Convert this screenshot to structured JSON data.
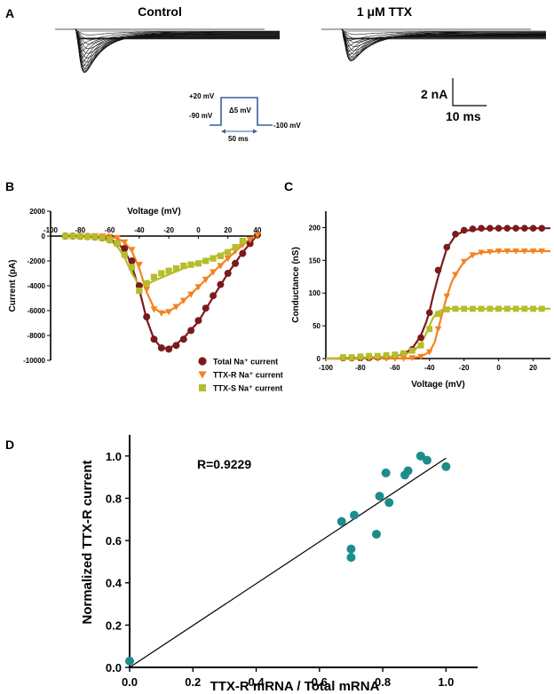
{
  "panel_labels": {
    "a": "A",
    "b": "B",
    "c": "C",
    "d": "D"
  },
  "panel_a": {
    "left_title": "Control",
    "right_title": "1 μM TTX",
    "protocol": {
      "top": "+20 mV",
      "step": "Δ5 mV",
      "hold": "-90 mV",
      "end": "-100 mV",
      "duration": "50 ms"
    },
    "scale": {
      "current": "2 nA",
      "time": "10 ms"
    }
  },
  "chart_data": [
    {
      "id": "B",
      "type": "line",
      "title": "",
      "xlabel": "Voltage (mV)",
      "ylabel": "Current (pA)",
      "xlim": [
        -100,
        40
      ],
      "ylim": [
        -10000,
        2000
      ],
      "xticks": [
        -100,
        -80,
        -60,
        -40,
        -20,
        0,
        20,
        40
      ],
      "xtick_labels": [
        "-100",
        "-80",
        "-60",
        "-40",
        "-20",
        "0",
        "20",
        "40"
      ],
      "yticks": [
        2000,
        0,
        -2000,
        -4000,
        -6000,
        -8000,
        -10000
      ],
      "ytick_labels": [
        "2000",
        "0",
        "-2000",
        "-4000",
        "-6000",
        "-8000",
        "-10000"
      ],
      "legend": [
        "Total Na⁺ current",
        "TTX-R Na⁺ current",
        "TTX-S Na⁺ current"
      ],
      "legend_position": "bottom-right",
      "series": [
        {
          "name": "Total Na⁺ current",
          "color": "#7b1a1c",
          "marker": "circle",
          "x": [
            -90,
            -85,
            -80,
            -75,
            -70,
            -65,
            -60,
            -55,
            -50,
            -45,
            -40,
            -35,
            -30,
            -25,
            -20,
            -15,
            -10,
            -5,
            0,
            5,
            10,
            15,
            20,
            25,
            30,
            35,
            40
          ],
          "y": [
            0,
            0,
            -20,
            -40,
            -80,
            -150,
            -300,
            -600,
            -1000,
            -2000,
            -4000,
            -6500,
            -8300,
            -9000,
            -9100,
            -8800,
            -8300,
            -7600,
            -6800,
            -5800,
            -4800,
            -3900,
            -3000,
            -2200,
            -1400,
            -600,
            100
          ]
        },
        {
          "name": "TTX-R Na⁺ current",
          "color": "#f58220",
          "marker": "triangle",
          "x": [
            -80,
            -75,
            -70,
            -65,
            -60,
            -55,
            -50,
            -45,
            -40,
            -35,
            -30,
            -25,
            -20,
            -15,
            -10,
            -5,
            0,
            5,
            10,
            15,
            20,
            25,
            30,
            35,
            40
          ],
          "y": [
            0,
            0,
            0,
            -20,
            -50,
            -150,
            -500,
            -1100,
            -2300,
            -4300,
            -5900,
            -6200,
            -6100,
            -5700,
            -5200,
            -4700,
            -4100,
            -3500,
            -2900,
            -2400,
            -1800,
            -1200,
            -700,
            -300,
            100
          ]
        },
        {
          "name": "TTX-S Na⁺ current",
          "color": "#b5bd2a",
          "marker": "square",
          "x": [
            -90,
            -85,
            -80,
            -75,
            -70,
            -65,
            -60,
            -55,
            -50,
            -45,
            -40,
            -35,
            -30,
            -25,
            -20,
            -15,
            -10,
            -5,
            0,
            5,
            10,
            15,
            20,
            25,
            30
          ],
          "y": [
            0,
            0,
            -20,
            -40,
            -80,
            -150,
            -300,
            -600,
            -1500,
            -2500,
            -4400,
            -3800,
            -3300,
            -3000,
            -2800,
            -2600,
            -2400,
            -2300,
            -2200,
            -2000,
            -1800,
            -1600,
            -1300,
            -900,
            -400
          ]
        }
      ],
      "fit_curves": [
        {
          "name": "Total Na⁺ fit",
          "color": "#7b1a1c",
          "x": [
            -90,
            -80,
            -70,
            -60,
            -55,
            -50,
            -45,
            -40,
            -35,
            -30,
            -25,
            -20,
            -15,
            -10,
            0,
            10,
            20,
            30,
            40
          ],
          "y": [
            0,
            -5,
            -40,
            -250,
            -550,
            -1100,
            -2400,
            -4300,
            -6700,
            -8300,
            -9000,
            -9050,
            -8700,
            -8200,
            -6900,
            -4900,
            -3000,
            -1300,
            100
          ]
        },
        {
          "name": "TTX-R Na⁺ fit",
          "color": "#f58220",
          "x": [
            -80,
            -70,
            -60,
            -55,
            -50,
            -45,
            -40,
            -35,
            -30,
            -25,
            -20,
            -15,
            -10,
            0,
            10,
            20,
            30,
            40
          ],
          "y": [
            0,
            -10,
            -60,
            -180,
            -500,
            -1200,
            -2600,
            -4500,
            -5800,
            -6200,
            -6050,
            -5700,
            -5200,
            -4100,
            -2900,
            -1800,
            -700,
            100
          ]
        },
        {
          "name": "TTX-S Na⁺ fit",
          "color": "#b5bd2a",
          "x": [
            -90,
            -80,
            -70,
            -60,
            -55,
            -50,
            -45,
            -40,
            -35,
            -30,
            -20,
            -10,
            0,
            10,
            20,
            30,
            40
          ],
          "y": [
            0,
            -10,
            -80,
            -350,
            -800,
            -1700,
            -3000,
            -3950,
            -3900,
            -3600,
            -3100,
            -2600,
            -2150,
            -1700,
            -1200,
            -600,
            100
          ]
        }
      ]
    },
    {
      "id": "C",
      "type": "line",
      "title": "",
      "xlabel": "Voltage (mV)",
      "ylabel": "Conductance (nS)",
      "xlim": [
        -100,
        30
      ],
      "ylim": [
        0,
        225
      ],
      "xticks": [
        -100,
        -80,
        -60,
        -40,
        -20,
        0,
        20
      ],
      "xtick_labels": [
        "-100",
        "-80",
        "-60",
        "-40",
        "-20",
        "0",
        "20"
      ],
      "yticks": [
        0,
        50,
        100,
        150,
        200
      ],
      "ytick_labels": [
        "0",
        "50",
        "100",
        "150",
        "200"
      ],
      "series": [
        {
          "name": "Total conductance",
          "color": "#7b1a1c",
          "marker": "circle",
          "x": [
            -90,
            -85,
            -80,
            -75,
            -70,
            -65,
            -60,
            -55,
            -50,
            -45,
            -40,
            -35,
            -30,
            -25,
            -20,
            -15,
            -10,
            -5,
            0,
            5,
            10,
            15,
            20,
            25
          ],
          "y": [
            1,
            1,
            1,
            1,
            2,
            3,
            4,
            7,
            14,
            32,
            70,
            135,
            170,
            190,
            196,
            198,
            199,
            199,
            199,
            199,
            199,
            199,
            199,
            199
          ]
        },
        {
          "name": "TTX-R conductance",
          "color": "#f58220",
          "marker": "triangle",
          "x": [
            -90,
            -85,
            -80,
            -75,
            -70,
            -65,
            -60,
            -55,
            -50,
            -45,
            -40,
            -35,
            -30,
            -25,
            -20,
            -15,
            -10,
            -5,
            0,
            5,
            10,
            15,
            20,
            25
          ],
          "y": [
            0,
            0,
            0,
            0,
            0,
            0,
            0,
            0,
            1,
            3,
            10,
            45,
            95,
            128,
            148,
            158,
            162,
            163,
            164,
            164,
            164,
            164,
            164,
            164
          ]
        },
        {
          "name": "TTX-S conductance",
          "color": "#b5bd2a",
          "marker": "square",
          "x": [
            -90,
            -85,
            -80,
            -75,
            -70,
            -65,
            -60,
            -55,
            -50,
            -45,
            -40,
            -35,
            -30,
            -25,
            -20,
            -15,
            -10,
            -5,
            0,
            5,
            10,
            15,
            20,
            25
          ],
          "y": [
            2,
            2,
            3,
            4,
            4,
            5,
            6,
            8,
            12,
            20,
            45,
            68,
            75,
            76,
            76,
            76,
            76,
            76,
            76,
            76,
            76,
            76,
            76,
            76
          ]
        }
      ],
      "fit_curves": [
        {
          "name": "Total fit",
          "color": "#7b1a1c",
          "x": [
            -100,
            -80,
            -70,
            -60,
            -55,
            -50,
            -45,
            -42,
            -40,
            -38,
            -35,
            -30,
            -25,
            -20,
            -10,
            0,
            10,
            20,
            30
          ],
          "y": [
            0,
            0,
            1,
            3,
            7,
            15,
            35,
            55,
            72,
            95,
            125,
            168,
            188,
            195,
            198,
            199,
            199,
            199,
            199
          ]
        },
        {
          "name": "TTX-R fit",
          "color": "#f58220",
          "x": [
            -100,
            -60,
            -50,
            -45,
            -40,
            -37,
            -35,
            -32,
            -30,
            -27,
            -25,
            -20,
            -15,
            -10,
            0,
            10,
            20,
            30
          ],
          "y": [
            0,
            0,
            1,
            3,
            10,
            25,
            45,
            75,
            95,
            118,
            128,
            148,
            158,
            162,
            164,
            164,
            164,
            164
          ]
        },
        {
          "name": "TTX-S fit",
          "color": "#b5bd2a",
          "x": [
            -100,
            -60,
            -50,
            -45,
            -42,
            -40,
            -38,
            -35,
            -32,
            -30,
            -20,
            0,
            30
          ],
          "y": [
            0,
            3,
            10,
            22,
            38,
            50,
            62,
            72,
            75,
            76,
            76,
            76,
            76
          ]
        }
      ]
    },
    {
      "id": "D",
      "type": "scatter",
      "title": "",
      "annotation": "R=0.9229",
      "xlabel": "TTX-R mRNA / Total mRNA",
      "ylabel": "Normalized TTX-R current",
      "xlim": [
        0,
        1.1
      ],
      "ylim": [
        0,
        1.1
      ],
      "xticks": [
        0,
        0.2,
        0.4,
        0.6,
        0.8,
        1.0
      ],
      "xtick_labels": [
        "0.0",
        "0.2",
        "0.4",
        "0.6",
        "0.8",
        "1.0"
      ],
      "yticks": [
        0,
        0.2,
        0.4,
        0.6,
        0.8,
        1.0
      ],
      "ytick_labels": [
        "0.0",
        "0.2",
        "0.4",
        "0.6",
        "0.8",
        "1.0"
      ],
      "point_color": "#1d8c8c",
      "points": {
        "x": [
          0.0,
          0.67,
          0.7,
          0.7,
          0.71,
          0.78,
          0.79,
          0.81,
          0.82,
          0.87,
          0.88,
          0.92,
          0.94,
          1.0
        ],
        "y": [
          0.03,
          0.69,
          0.52,
          0.56,
          0.72,
          0.63,
          0.81,
          0.92,
          0.78,
          0.91,
          0.93,
          1.0,
          0.98,
          0.95
        ]
      },
      "regression_line": {
        "x": [
          0.0,
          1.0
        ],
        "y": [
          0.0,
          0.99
        ]
      }
    }
  ]
}
